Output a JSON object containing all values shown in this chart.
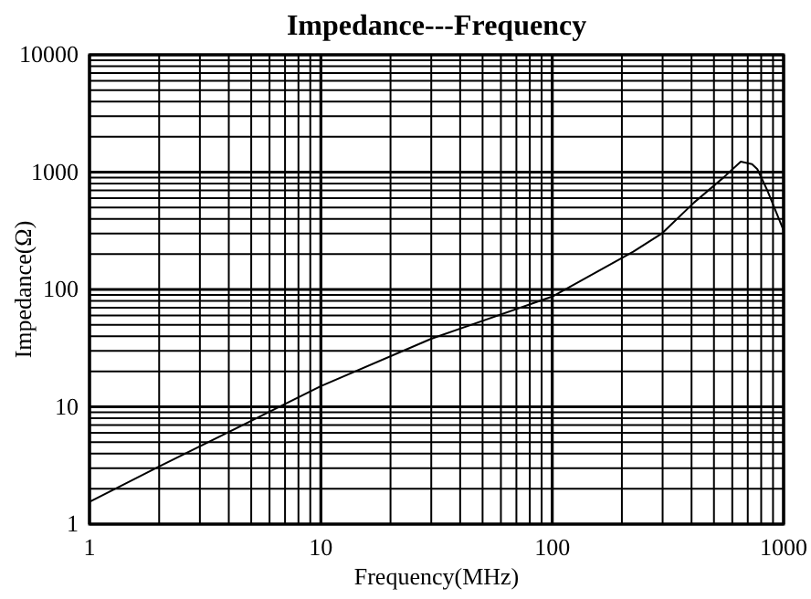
{
  "chart_data": {
    "type": "line",
    "title": "Impedance---Frequency",
    "xlabel": "Frequency(MHz)",
    "ylabel": "Impedance(Ω)",
    "log": "xy",
    "grid": true,
    "marker": "none",
    "line_style": "solid",
    "x": [
      1,
      2,
      5,
      10,
      30,
      100,
      224,
      299,
      410,
      550,
      653,
      730,
      770,
      850,
      1000
    ],
    "series": [
      {
        "color": "#000000",
        "values": [
          1.55,
          3.1,
          7.6,
          15,
          38,
          87,
          210,
          302,
          550,
          900,
          1230,
          1170,
          1060,
          700,
          318
        ]
      }
    ],
    "xlim": [
      1,
      1000
    ],
    "ylim": [
      1,
      10000
    ],
    "xticks": [
      1,
      {
        "value": 2,
        "label": null
      },
      {
        "value": 3,
        "label": null
      },
      {
        "value": 4,
        "label": null
      },
      {
        "value": 5,
        "label": null
      },
      {
        "value": 6,
        "label": null
      },
      {
        "value": 7,
        "label": null
      },
      {
        "value": 8,
        "label": null
      },
      {
        "value": 9,
        "label": null
      },
      10,
      {
        "value": 20,
        "label": null
      },
      {
        "value": 30,
        "label": null
      },
      {
        "value": 40,
        "label": null
      },
      {
        "value": 50,
        "label": null
      },
      {
        "value": 60,
        "label": null
      },
      {
        "value": 70,
        "label": null
      },
      {
        "value": 80,
        "label": null
      },
      {
        "value": 90,
        "label": null
      },
      100,
      {
        "value": 200,
        "label": null
      },
      {
        "value": 300,
        "label": null
      },
      {
        "value": 400,
        "label": null
      },
      {
        "value": 500,
        "label": null
      },
      {
        "value": 600,
        "label": null
      },
      {
        "value": 700,
        "label": null
      },
      {
        "value": 800,
        "label": null
      },
      {
        "value": 900,
        "label": null
      },
      1000
    ],
    "yticks": [
      1,
      {
        "value": 2,
        "label": null
      },
      {
        "value": 3,
        "label": null
      },
      {
        "value": 4,
        "label": null
      },
      {
        "value": 5,
        "label": null
      },
      {
        "value": 6,
        "label": null
      },
      {
        "value": 7,
        "label": null
      },
      {
        "value": 8,
        "label": null
      },
      {
        "value": 9,
        "label": null
      },
      10,
      {
        "value": 20,
        "label": null
      },
      {
        "value": 30,
        "label": null
      },
      {
        "value": 40,
        "label": null
      },
      {
        "value": 50,
        "label": null
      },
      {
        "value": 60,
        "label": null
      },
      {
        "value": 70,
        "label": null
      },
      {
        "value": 80,
        "label": null
      },
      {
        "value": 90,
        "label": null
      },
      100,
      {
        "value": 200,
        "label": null
      },
      {
        "value": 300,
        "label": null
      },
      {
        "value": 400,
        "label": null
      },
      {
        "value": 500,
        "label": null
      },
      {
        "value": 600,
        "label": null
      },
      {
        "value": 700,
        "label": null
      },
      {
        "value": 800,
        "label": null
      },
      {
        "value": 900,
        "label": null
      },
      1000,
      {
        "value": 2000,
        "label": null
      },
      {
        "value": 3000,
        "label": null
      },
      {
        "value": 4000,
        "label": null
      },
      {
        "value": 5000,
        "label": null
      },
      {
        "value": 6000,
        "label": null
      },
      {
        "value": 7000,
        "label": null
      },
      {
        "value": 8000,
        "label": null
      },
      {
        "value": 9000,
        "label": null
      },
      10000
    ]
  }
}
